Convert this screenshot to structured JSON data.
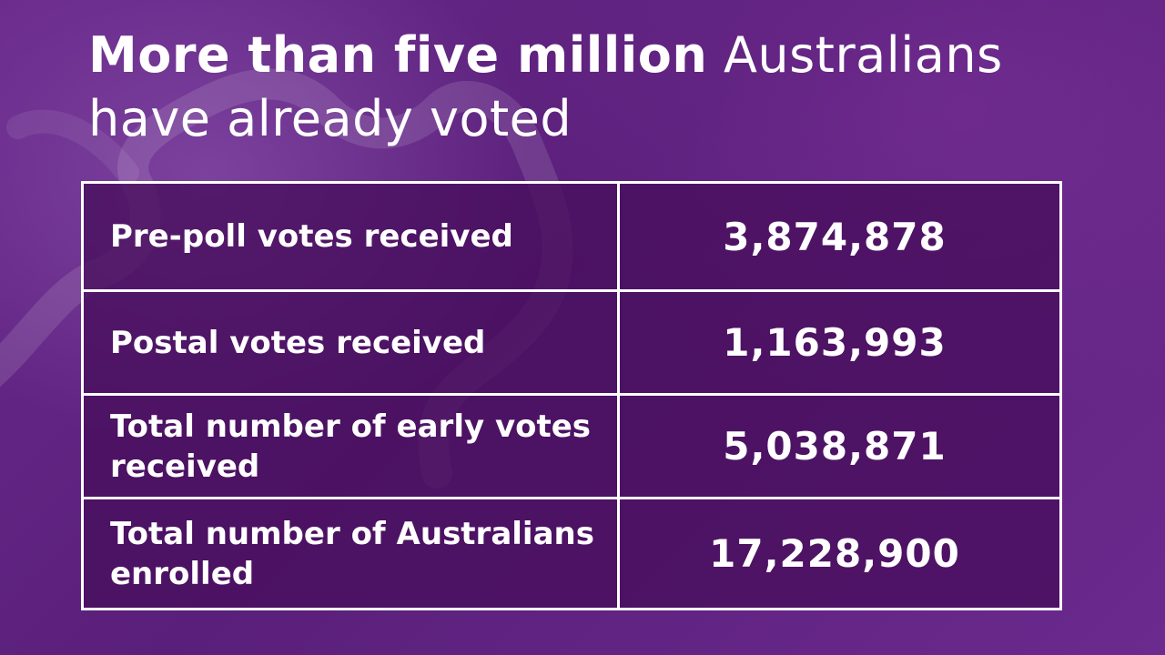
{
  "headline": {
    "bold": "More than five million",
    "regular_line1": "Australians",
    "regular_line2": "have already voted"
  },
  "table": {
    "rows": [
      {
        "label": "Pre-poll votes received",
        "value": "3,874,878"
      },
      {
        "label": "Postal votes received",
        "value": "1,163,993"
      },
      {
        "label": "Total number of early votes received",
        "value": "5,038,871"
      },
      {
        "label": "Total number of Australians enrolled",
        "value": "17,228,900"
      }
    ]
  },
  "colors": {
    "background": "#5a1f7a",
    "cell_fill": "#4a0e5c",
    "border": "#ffffff",
    "text": "#ffffff"
  }
}
